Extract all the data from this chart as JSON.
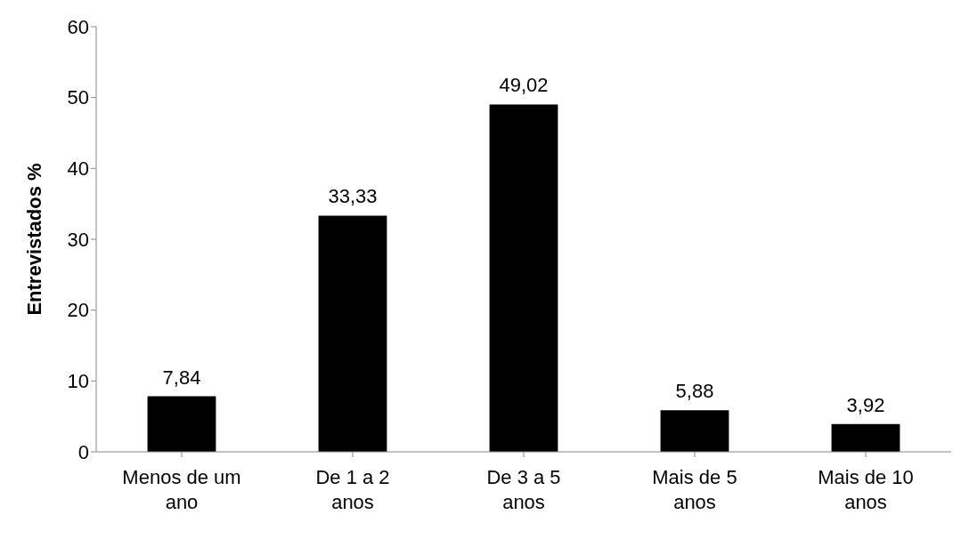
{
  "chart_data": {
    "type": "bar",
    "ylabel": "Entrevistados %",
    "categories": [
      "Menos de um ano",
      "De 1 a 2 anos",
      "De 3 a 5 anos",
      "Mais de 5 anos",
      "Mais de 10 anos"
    ],
    "values": [
      7.84,
      33.33,
      49.02,
      5.88,
      3.92
    ],
    "value_labels": [
      "7,84",
      "33,33",
      "49,02",
      "5,88",
      "3,92"
    ],
    "color": "#000000",
    "ylim": [
      0,
      60
    ],
    "yticks": [
      0,
      10,
      20,
      30,
      40,
      50,
      60
    ],
    "grid": false,
    "legend": false
  }
}
